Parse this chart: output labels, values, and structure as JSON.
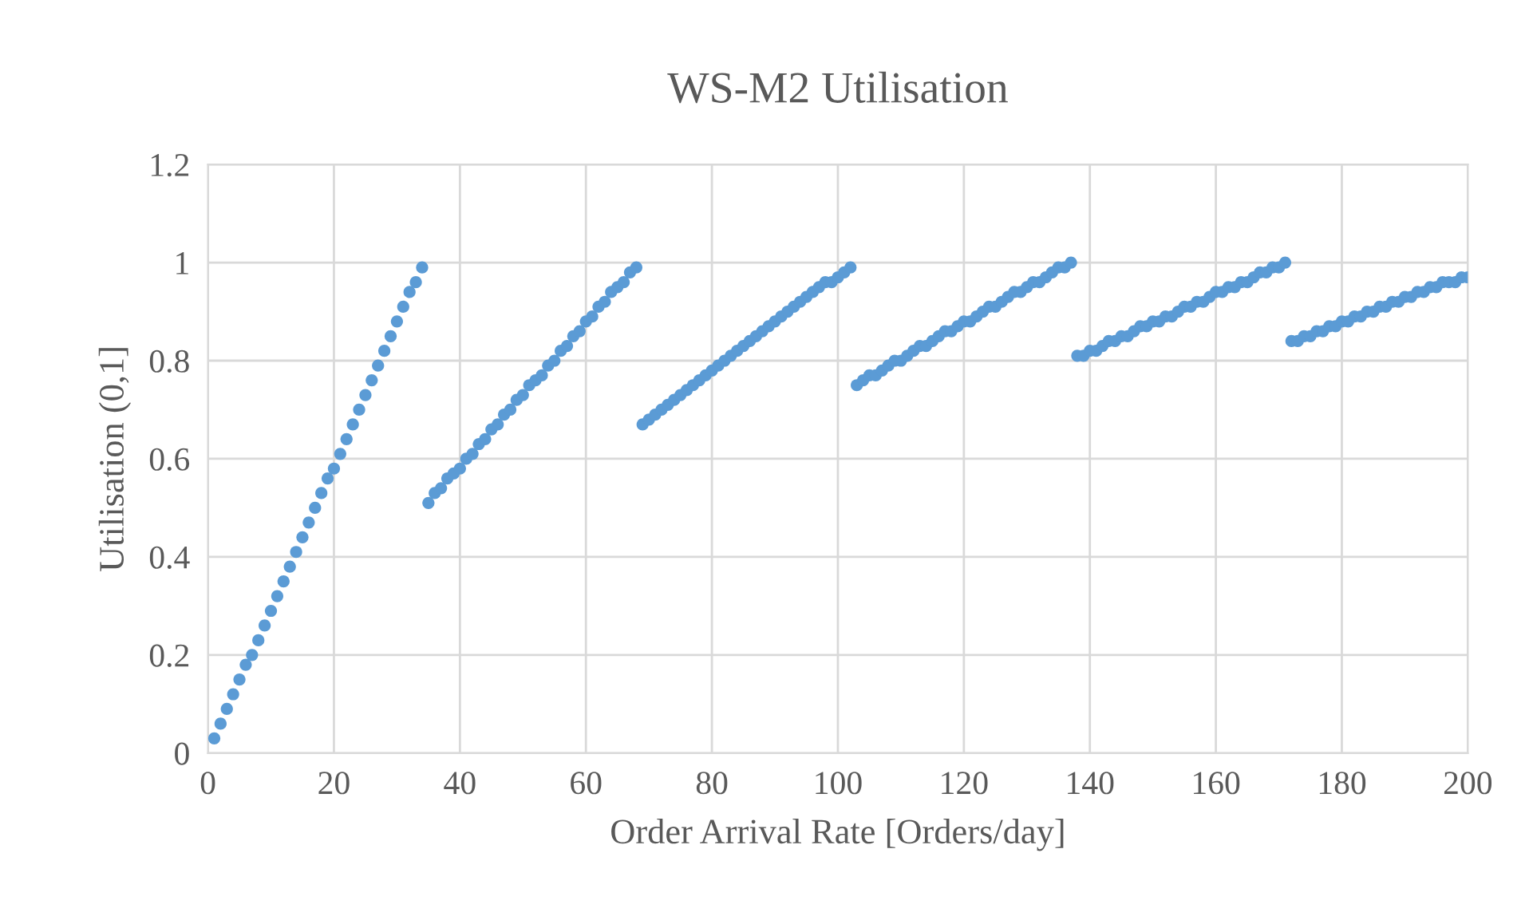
{
  "chart_data": {
    "type": "scatter",
    "title": "WS-M2 Utilisation",
    "xlabel": "Order Arrival Rate [Orders/day]",
    "ylabel": "Utilisation (0,1]",
    "x": [
      1,
      2,
      3,
      4,
      5,
      6,
      7,
      8,
      9,
      10,
      11,
      12,
      13,
      14,
      15,
      16,
      17,
      18,
      19,
      20,
      21,
      22,
      23,
      24,
      25,
      26,
      27,
      28,
      29,
      30,
      31,
      32,
      33,
      34,
      35,
      36,
      37,
      38,
      39,
      40,
      41,
      42,
      43,
      44,
      45,
      46,
      47,
      48,
      49,
      50,
      51,
      52,
      53,
      54,
      55,
      56,
      57,
      58,
      59,
      60,
      61,
      62,
      63,
      64,
      65,
      66,
      67,
      68,
      69,
      70,
      71,
      72,
      73,
      74,
      75,
      76,
      77,
      78,
      79,
      80,
      81,
      82,
      83,
      84,
      85,
      86,
      87,
      88,
      89,
      90,
      91,
      92,
      93,
      94,
      95,
      96,
      97,
      98,
      99,
      100,
      101,
      102,
      103,
      104,
      105,
      106,
      107,
      108,
      109,
      110,
      111,
      112,
      113,
      114,
      115,
      116,
      117,
      118,
      119,
      120,
      121,
      122,
      123,
      124,
      125,
      126,
      127,
      128,
      129,
      130,
      131,
      132,
      133,
      134,
      135,
      136,
      137,
      138,
      139,
      140,
      141,
      142,
      143,
      144,
      145,
      146,
      147,
      148,
      149,
      150,
      151,
      152,
      153,
      154,
      155,
      156,
      157,
      158,
      159,
      160,
      161,
      162,
      163,
      164,
      165,
      166,
      167,
      168,
      169,
      170,
      171,
      172,
      173,
      174,
      175,
      176,
      177,
      178,
      179,
      180,
      181,
      182,
      183,
      184,
      185,
      186,
      187,
      188,
      189,
      190,
      191,
      192,
      193,
      194,
      195,
      196,
      197,
      198,
      199,
      200
    ],
    "series": [
      {
        "color": "#5b9bd5",
        "values": [
          0.03,
          0.06,
          0.09,
          0.12,
          0.15,
          0.18,
          0.2,
          0.23,
          0.26,
          0.29,
          0.32,
          0.35,
          0.38,
          0.41,
          0.44,
          0.47,
          0.5,
          0.53,
          0.56,
          0.58,
          0.61,
          0.64,
          0.67,
          0.7,
          0.73,
          0.76,
          0.79,
          0.82,
          0.85,
          0.88,
          0.91,
          0.94,
          0.96,
          0.99,
          0.51,
          0.53,
          0.54,
          0.56,
          0.57,
          0.58,
          0.6,
          0.61,
          0.63,
          0.64,
          0.66,
          0.67,
          0.69,
          0.7,
          0.72,
          0.73,
          0.75,
          0.76,
          0.77,
          0.79,
          0.8,
          0.82,
          0.83,
          0.85,
          0.86,
          0.88,
          0.89,
          0.91,
          0.92,
          0.94,
          0.95,
          0.96,
          0.98,
          0.99,
          0.67,
          0.68,
          0.69,
          0.7,
          0.71,
          0.72,
          0.73,
          0.74,
          0.75,
          0.76,
          0.77,
          0.78,
          0.79,
          0.8,
          0.81,
          0.82,
          0.83,
          0.84,
          0.85,
          0.86,
          0.87,
          0.88,
          0.89,
          0.9,
          0.91,
          0.92,
          0.93,
          0.94,
          0.95,
          0.96,
          0.96,
          0.97,
          0.98,
          0.99,
          0.75,
          0.76,
          0.77,
          0.77,
          0.78,
          0.79,
          0.8,
          0.8,
          0.81,
          0.82,
          0.83,
          0.83,
          0.84,
          0.85,
          0.86,
          0.86,
          0.87,
          0.88,
          0.88,
          0.89,
          0.9,
          0.91,
          0.91,
          0.92,
          0.93,
          0.94,
          0.94,
          0.95,
          0.96,
          0.96,
          0.97,
          0.98,
          0.99,
          0.99,
          1.0,
          0.81,
          0.81,
          0.82,
          0.82,
          0.83,
          0.84,
          0.84,
          0.85,
          0.85,
          0.86,
          0.87,
          0.87,
          0.88,
          0.88,
          0.89,
          0.89,
          0.9,
          0.91,
          0.91,
          0.92,
          0.92,
          0.93,
          0.94,
          0.94,
          0.95,
          0.95,
          0.96,
          0.96,
          0.97,
          0.98,
          0.98,
          0.99,
          0.99,
          1.0,
          0.84,
          0.84,
          0.85,
          0.85,
          0.86,
          0.86,
          0.87,
          0.87,
          0.88,
          0.88,
          0.89,
          0.89,
          0.9,
          0.9,
          0.91,
          0.91,
          0.92,
          0.92,
          0.93,
          0.93,
          0.94,
          0.94,
          0.95,
          0.95,
          0.96,
          0.96,
          0.96,
          0.97,
          0.97
        ]
      }
    ],
    "xlim": [
      0,
      200
    ],
    "xticks": [
      0,
      20,
      40,
      60,
      80,
      100,
      120,
      140,
      160,
      180,
      200
    ],
    "ylim": [
      0,
      1.2
    ],
    "yticks": [
      0,
      0.2,
      0.4,
      0.6,
      0.8,
      1,
      1.2
    ],
    "grid": true,
    "marker": "circle"
  }
}
